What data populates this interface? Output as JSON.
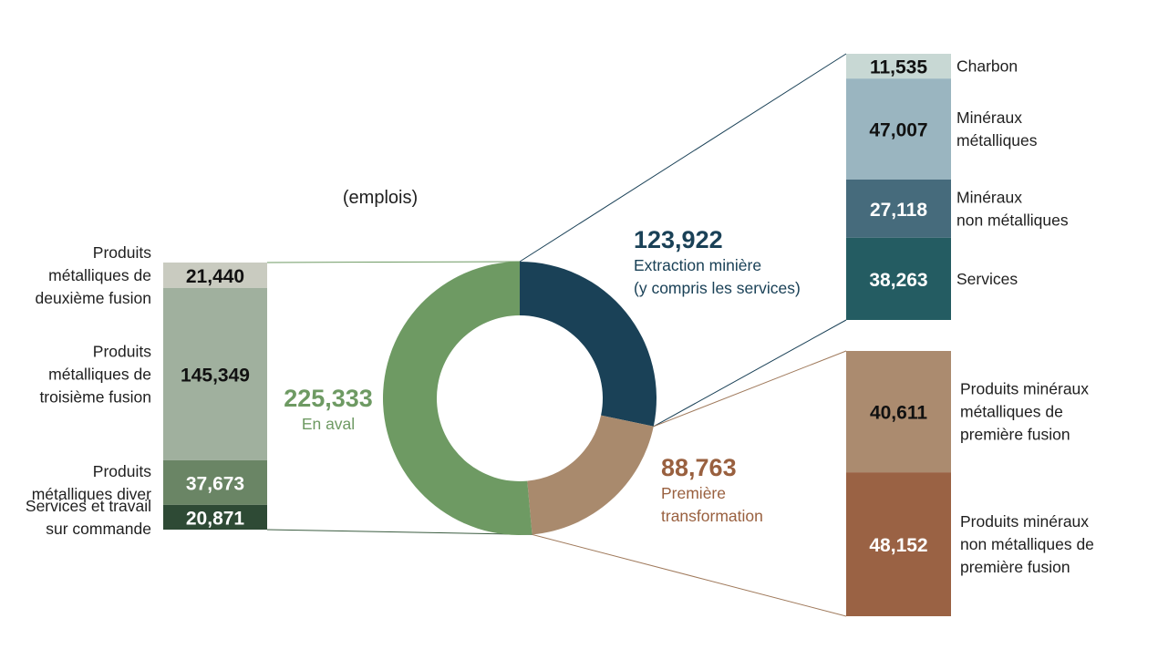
{
  "chart_data": {
    "type": "pie",
    "unit_label": "(emplois)",
    "donut": {
      "slices": [
        {
          "label_lines": [
            "Extraction minière",
            "(y compris les services)"
          ],
          "value": 123922,
          "value_text": "123,922",
          "color": "#1a4157"
        },
        {
          "label_lines": [
            "Première",
            "transformation"
          ],
          "value": 88763,
          "value_text": "88,763",
          "color": "#a98a6d"
        },
        {
          "label_lines": [
            "En aval"
          ],
          "value": 225333,
          "value_text": "225,333",
          "color": "#6e9a63"
        }
      ],
      "label_colors": [
        "#1a4157",
        "#99603f",
        "#6e9a63"
      ]
    },
    "breakdowns": {
      "left": {
        "parent": "En aval",
        "segments": [
          {
            "label_lines": [
              "Produits",
              "métalliques de",
              "deuxième fusion"
            ],
            "value": 21440,
            "value_text": "21,440",
            "color": "#c9cbc0",
            "text_color": "#111111"
          },
          {
            "label_lines": [
              "Produits",
              "métalliques de",
              "troisième fusion"
            ],
            "value": 145349,
            "value_text": "145,349",
            "color": "#a0b09e",
            "text_color": "#111111"
          },
          {
            "label_lines": [
              "Produits",
              "métalliques diver"
            ],
            "value": 37673,
            "value_text": "37,673",
            "color": "#6a8565",
            "text_color": "#ffffff"
          },
          {
            "label_lines": [
              "Services et travail",
              "sur commande"
            ],
            "value": 20871,
            "value_text": "20,871",
            "color": "#2e4a35",
            "text_color": "#ffffff"
          }
        ]
      },
      "top_right": {
        "parent": "Extraction minière (y compris les services)",
        "segments": [
          {
            "label_lines": [
              "Charbon"
            ],
            "value": 11535,
            "value_text": "11,535",
            "color": "#c8d8d4",
            "text_color": "#111111"
          },
          {
            "label_lines": [
              "Minéraux",
              "métalliques"
            ],
            "value": 47007,
            "value_text": "47,007",
            "color": "#9ab5c0",
            "text_color": "#111111"
          },
          {
            "label_lines": [
              "Minéraux",
              "non métalliques"
            ],
            "value": 27118,
            "value_text": "27,118",
            "color": "#466b7c",
            "text_color": "#ffffff"
          },
          {
            "label_lines": [
              "Services"
            ],
            "value": 38263,
            "value_text": "38,263",
            "color": "#245c62",
            "text_color": "#ffffff"
          }
        ]
      },
      "bottom_right": {
        "parent": "Première transformation",
        "segments": [
          {
            "label_lines": [
              "Produits minéraux",
              "métalliques de",
              "première fusion"
            ],
            "value": 40611,
            "value_text": "40,611",
            "color": "#ab8b6f",
            "text_color": "#111111"
          },
          {
            "label_lines": [
              "Produits minéraux",
              "non métalliques de",
              "première fusion"
            ],
            "value": 48152,
            "value_text": "48,152",
            "color": "#9a6244",
            "text_color": "#ffffff"
          }
        ]
      }
    }
  }
}
